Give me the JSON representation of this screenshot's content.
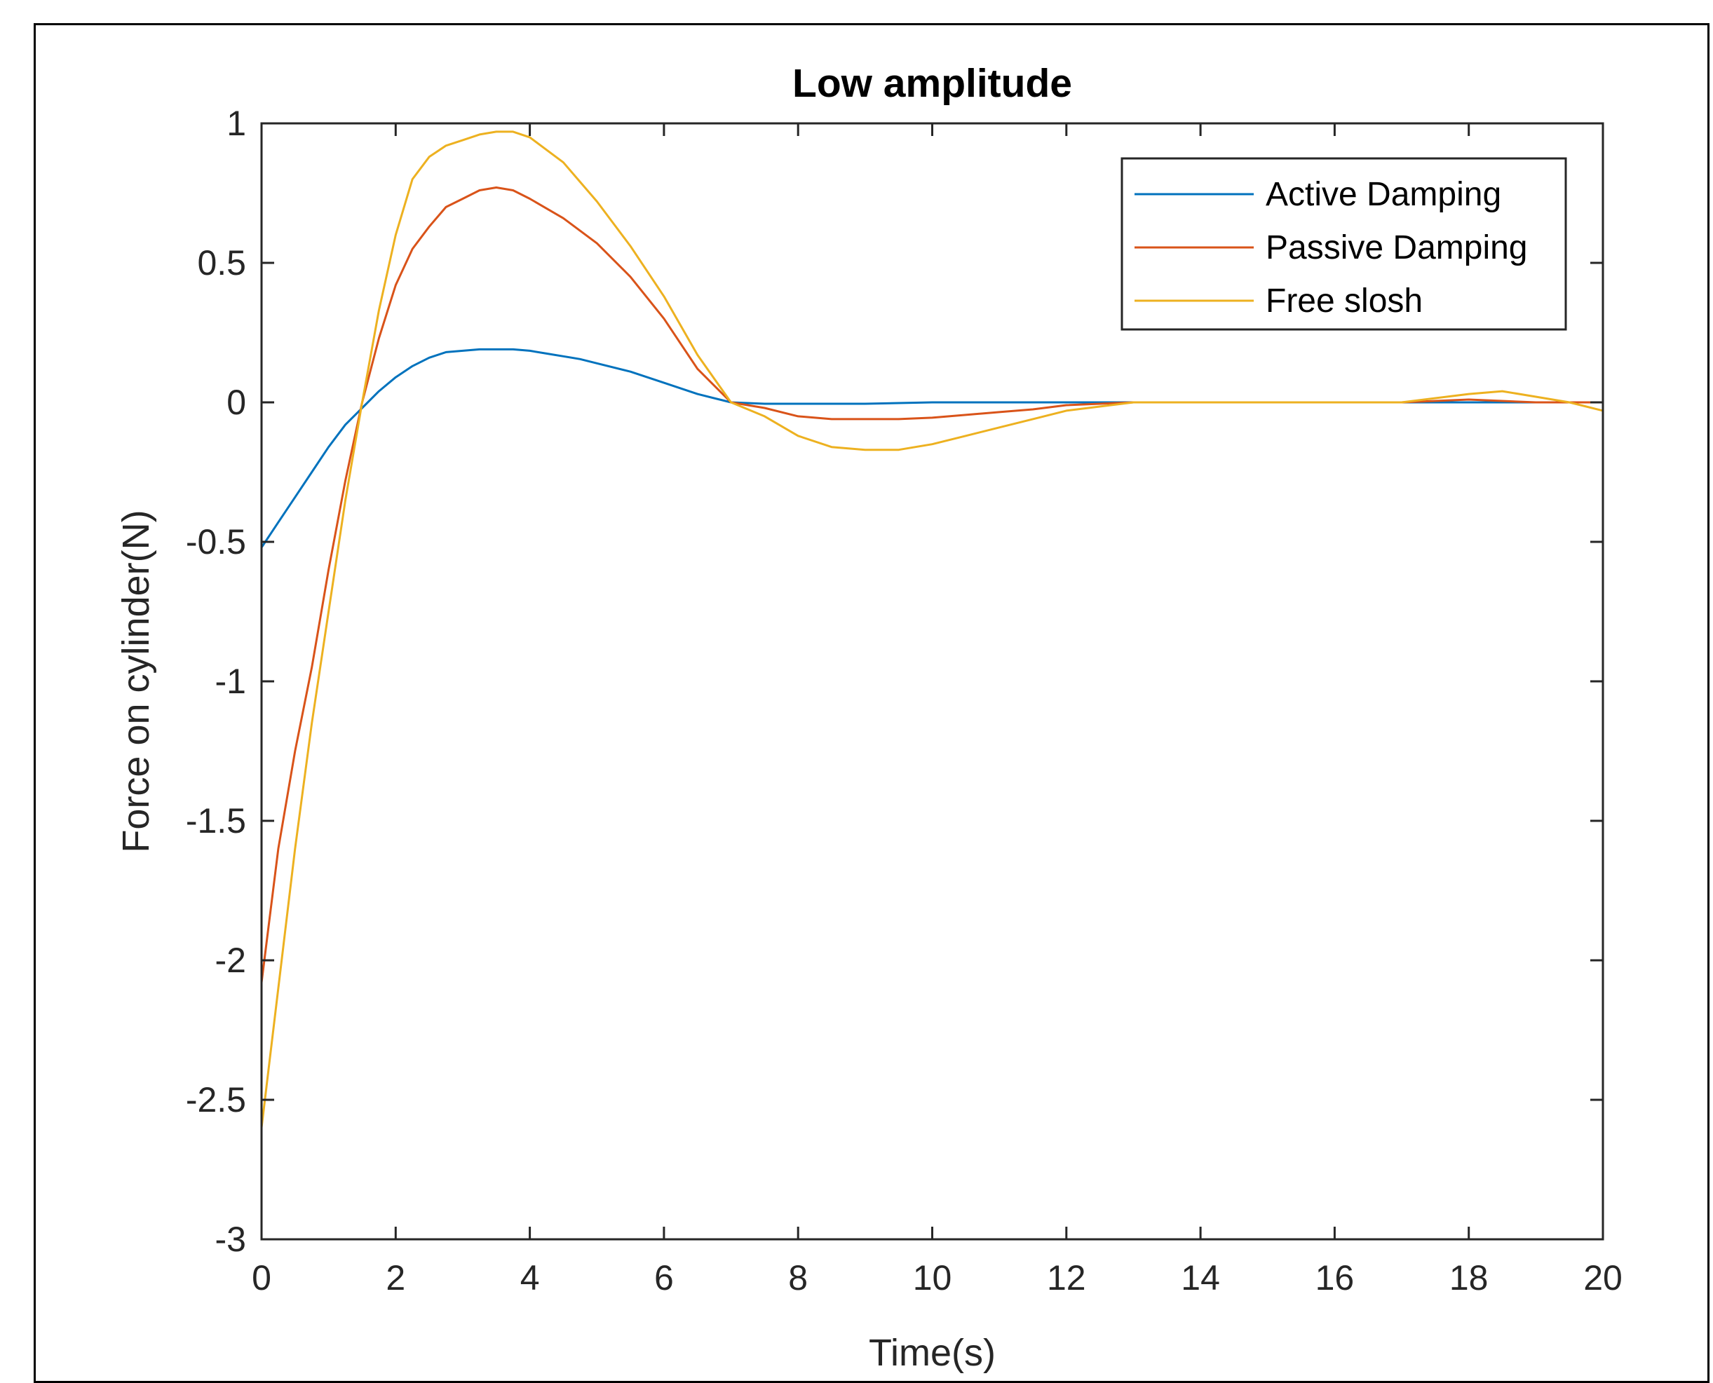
{
  "chart_data": {
    "type": "line",
    "title": "Low amplitude",
    "xlabel": "Time(s)",
    "ylabel": "Force on cylinder(N)",
    "xlim": [
      0,
      20
    ],
    "ylim": [
      -3,
      1
    ],
    "xticks": [
      0,
      2,
      4,
      6,
      8,
      10,
      12,
      14,
      16,
      18,
      20
    ],
    "xtick_labels": [
      "0",
      "2",
      "4",
      "6",
      "8",
      "10",
      "12",
      "14",
      "16",
      "18",
      "20"
    ],
    "yticks": [
      -3,
      -2.5,
      -2,
      -1.5,
      -1,
      -0.5,
      0,
      0.5,
      1
    ],
    "ytick_labels": [
      "-3",
      "-2.5",
      "-2",
      "-1.5",
      "-1",
      "-0.5",
      "0",
      "0.5",
      "1"
    ],
    "grid": false,
    "legend_position": "top-right",
    "series": [
      {
        "name": "Active Damping",
        "color": "#0072BD",
        "x": [
          0,
          0.25,
          0.5,
          0.75,
          1.0,
          1.25,
          1.5,
          1.75,
          2.0,
          2.25,
          2.5,
          2.75,
          3.0,
          3.25,
          3.5,
          3.75,
          4.0,
          4.25,
          4.5,
          4.75,
          5.0,
          5.5,
          6.0,
          6.5,
          7.0,
          7.5,
          8.0,
          9.0,
          10.0,
          12.0,
          14.0,
          16.0,
          18.0,
          20.0
        ],
        "y": [
          -0.52,
          -0.43,
          -0.34,
          -0.25,
          -0.16,
          -0.08,
          -0.02,
          0.04,
          0.09,
          0.13,
          0.16,
          0.18,
          0.185,
          0.19,
          0.19,
          0.19,
          0.185,
          0.175,
          0.165,
          0.155,
          0.14,
          0.11,
          0.07,
          0.03,
          0.0,
          -0.005,
          -0.005,
          -0.005,
          0.0,
          0.0,
          0.0,
          0.0,
          0.0,
          0.0
        ]
      },
      {
        "name": "Passive Damping",
        "color": "#D95319",
        "x": [
          0,
          0.25,
          0.5,
          0.75,
          1.0,
          1.25,
          1.5,
          1.75,
          2.0,
          2.25,
          2.5,
          2.75,
          3.0,
          3.25,
          3.5,
          3.75,
          4.0,
          4.5,
          5.0,
          5.5,
          6.0,
          6.5,
          7.0,
          7.5,
          8.0,
          8.5,
          9.0,
          9.5,
          10.0,
          10.5,
          11.0,
          11.5,
          12.0,
          13.0,
          14.0,
          15.0,
          16.0,
          17.0,
          18.0,
          19.0,
          20.0
        ],
        "y": [
          -2.08,
          -1.6,
          -1.25,
          -0.95,
          -0.6,
          -0.28,
          0.0,
          0.23,
          0.42,
          0.55,
          0.63,
          0.7,
          0.73,
          0.76,
          0.77,
          0.76,
          0.73,
          0.66,
          0.57,
          0.45,
          0.3,
          0.12,
          0.0,
          -0.02,
          -0.05,
          -0.06,
          -0.06,
          -0.06,
          -0.055,
          -0.045,
          -0.035,
          -0.025,
          -0.01,
          0.0,
          0.0,
          0.0,
          0.0,
          0.0,
          0.01,
          0.0,
          0.0
        ]
      },
      {
        "name": "Free slosh",
        "color": "#EDB120",
        "x": [
          0,
          0.25,
          0.5,
          0.75,
          1.0,
          1.25,
          1.5,
          1.75,
          2.0,
          2.25,
          2.5,
          2.75,
          3.0,
          3.25,
          3.5,
          3.75,
          4.0,
          4.5,
          5.0,
          5.5,
          6.0,
          6.5,
          7.0,
          7.5,
          8.0,
          8.5,
          9.0,
          9.5,
          10.0,
          10.5,
          11.0,
          11.5,
          12.0,
          13.0,
          14.0,
          15.0,
          16.0,
          17.0,
          18.0,
          18.5,
          19.0,
          19.5,
          20.0
        ],
        "y": [
          -2.6,
          -2.1,
          -1.6,
          -1.15,
          -0.75,
          -0.35,
          0.0,
          0.33,
          0.6,
          0.8,
          0.88,
          0.92,
          0.94,
          0.96,
          0.97,
          0.97,
          0.95,
          0.86,
          0.72,
          0.56,
          0.38,
          0.17,
          0.0,
          -0.05,
          -0.12,
          -0.16,
          -0.17,
          -0.17,
          -0.15,
          -0.12,
          -0.09,
          -0.06,
          -0.03,
          0.0,
          0.0,
          0.0,
          0.0,
          0.0,
          0.03,
          0.04,
          0.02,
          0.0,
          -0.03
        ]
      }
    ]
  }
}
